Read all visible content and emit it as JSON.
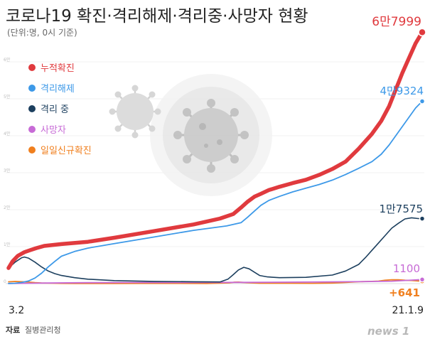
{
  "header": {
    "title": "코로나19 확진·격리해제·격리중·사망자 현황",
    "unit_note": "(단위:명, 0시 기준)"
  },
  "legend": [
    {
      "label": "누적확진",
      "color": "#e03a3e"
    },
    {
      "label": "격리해제",
      "color": "#3d99e8"
    },
    {
      "label": "격리 중",
      "color": "#1c3f5e"
    },
    {
      "label": "사망자",
      "color": "#c76bd6"
    },
    {
      "label": "일일신규확진",
      "color": "#f07f1e"
    }
  ],
  "end_labels": {
    "confirmed": "6만7999",
    "released": "4만9324",
    "isolated": "1만7575",
    "deaths": "1100",
    "daily": "+641"
  },
  "x_ticks": {
    "start": "3.2",
    "end": "21.1.9"
  },
  "y_ticks": [
    "6만",
    "5만",
    "4만",
    "3만",
    "2만",
    "1만",
    "0"
  ],
  "footer": {
    "source_label": "자료",
    "source_name": "질병관리청",
    "logo": "news 1"
  },
  "chart_data": {
    "type": "line",
    "x_range": [
      "2020-03-02",
      "2021-01-09"
    ],
    "ylim": [
      0,
      70000
    ],
    "grid": true,
    "legend_position": "top-left",
    "series": [
      {
        "name": "누적확진",
        "color": "#e03a3e",
        "x": [
          0,
          3,
          7,
          12,
          16,
          21,
          27,
          40,
          60,
          80,
          110,
          140,
          160,
          170,
          176,
          181,
          186,
          191,
          197,
          205,
          215,
          225,
          235,
          245,
          255,
          265,
          275,
          282,
          288,
          293,
          298,
          303,
          308,
          313
        ],
        "y": [
          4212,
          6000,
          7500,
          8500,
          9000,
          9600,
          10200,
          10700,
          11300,
          12400,
          14200,
          16000,
          17600,
          18800,
          20600,
          22200,
          23500,
          24300,
          25300,
          26200,
          27200,
          28100,
          29400,
          31000,
          33000,
          36500,
          40500,
          44000,
          48000,
          52500,
          57000,
          61000,
          65000,
          67999
        ]
      },
      {
        "name": "격리해제",
        "color": "#3d99e8",
        "x": [
          0,
          5,
          10,
          15,
          20,
          25,
          30,
          35,
          40,
          50,
          60,
          80,
          110,
          140,
          165,
          176,
          181,
          186,
          191,
          197,
          205,
          215,
          225,
          235,
          245,
          255,
          265,
          275,
          282,
          288,
          293,
          298,
          303,
          308,
          313
        ],
        "y": [
          30,
          100,
          300,
          700,
          1500,
          2800,
          4500,
          6000,
          7400,
          8700,
          9600,
          10800,
          12600,
          14400,
          15600,
          16500,
          18000,
          19600,
          21200,
          22500,
          23600,
          24800,
          25800,
          26800,
          28000,
          29500,
          31200,
          33000,
          35000,
          37500,
          40000,
          42500,
          45000,
          47500,
          49324
        ]
      },
      {
        "name": "격리 중",
        "color": "#1c3f5e",
        "x": [
          0,
          5,
          10,
          12,
          15,
          20,
          25,
          30,
          35,
          40,
          50,
          60,
          80,
          110,
          140,
          160,
          166,
          170,
          174,
          178,
          182,
          186,
          190,
          196,
          205,
          225,
          245,
          255,
          265,
          270,
          275,
          280,
          285,
          290,
          295,
          300,
          305,
          310,
          313
        ],
        "y": [
          4180,
          5800,
          7000,
          7200,
          6900,
          5800,
          4500,
          3400,
          2700,
          2200,
          1600,
          1200,
          800,
          600,
          500,
          450,
          1200,
          2400,
          3700,
          4400,
          4000,
          3100,
          2200,
          1800,
          1600,
          1700,
          2300,
          3400,
          5200,
          7000,
          9000,
          11000,
          13000,
          15000,
          16300,
          17500,
          17800,
          17600,
          17575
        ]
      },
      {
        "name": "사망자",
        "color": "#c76bd6",
        "x": [
          0,
          30,
          60,
          90,
          120,
          150,
          180,
          210,
          240,
          270,
          290,
          300,
          305,
          313
        ],
        "y": [
          22,
          150,
          250,
          280,
          290,
          300,
          320,
          380,
          450,
          530,
          650,
          850,
          950,
          1100
        ]
      },
      {
        "name": "일일신규확진",
        "color": "#f07f1e",
        "x": [
          0,
          5,
          10,
          15,
          20,
          25,
          30,
          40,
          50,
          60,
          80,
          100,
          120,
          150,
          167,
          171,
          174,
          177,
          180,
          190,
          210,
          230,
          245,
          255,
          260,
          265,
          270,
          275,
          280,
          285,
          290,
          295,
          300,
          305,
          313
        ],
        "y": [
          476,
          580,
          500,
          400,
          250,
          150,
          120,
          60,
          40,
          40,
          40,
          50,
          50,
          40,
          200,
          380,
          400,
          320,
          250,
          100,
          100,
          80,
          150,
          300,
          400,
          500,
          560,
          600,
          680,
          900,
          1030,
          1020,
          900,
          850,
          641
        ]
      }
    ]
  }
}
